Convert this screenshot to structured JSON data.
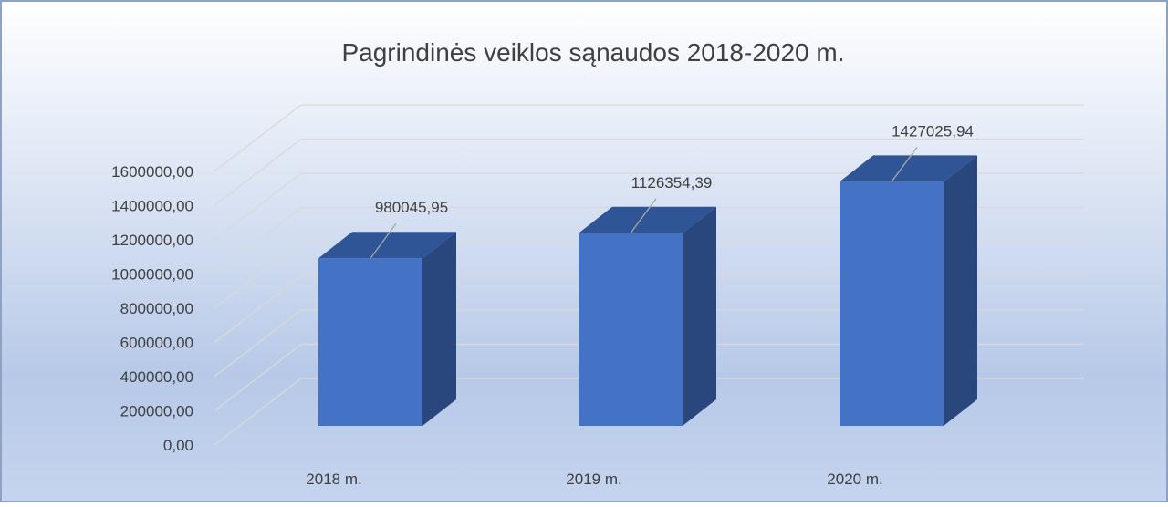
{
  "chart_data": {
    "type": "bar3d",
    "title": "Pagrindinės veiklos sąnaudos 2018-2020 m.",
    "categories": [
      "2018 m.",
      "2019 m.",
      "2020 m."
    ],
    "values": [
      980045.95,
      1126354.39,
      1427025.94
    ],
    "value_labels": [
      "980045,95",
      "1126354,39",
      "1427025,94"
    ],
    "color": "#4472c4",
    "ylim": [
      0,
      1600000
    ],
    "yticks": [
      {
        "value": 0,
        "label": "0,00"
      },
      {
        "value": 200000,
        "label": "200000,00"
      },
      {
        "value": 400000,
        "label": "400000,00"
      },
      {
        "value": 600000,
        "label": "600000,00"
      },
      {
        "value": 800000,
        "label": "800000,00"
      },
      {
        "value": 1000000,
        "label": "1000000,00"
      },
      {
        "value": 1200000,
        "label": "1200000,00"
      },
      {
        "value": 1400000,
        "label": "1400000,00"
      },
      {
        "value": 1600000,
        "label": "1600000,00"
      }
    ],
    "grid": true
  }
}
